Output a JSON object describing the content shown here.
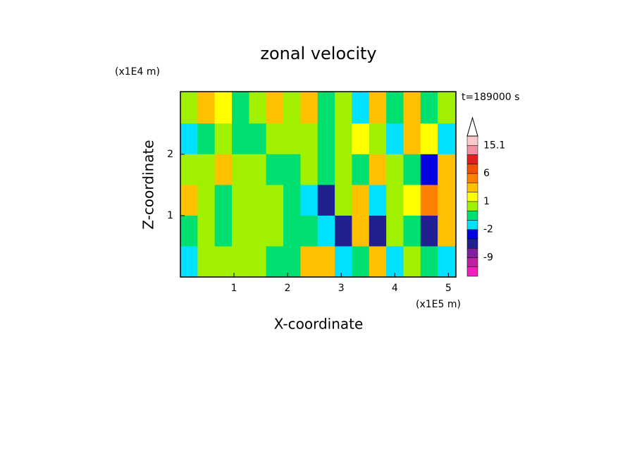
{
  "chart_data": {
    "type": "contour",
    "title": "zonal velocity",
    "x_label": "X-coordinate",
    "y_label": "Z-coordinate",
    "x_unit": "(x1E5 m)",
    "y_unit": "(x1E4 m)",
    "annotation": "t=189000 s",
    "xlim": [
      0,
      5.14
    ],
    "ylim": [
      0,
      3.02
    ],
    "xticks": [
      1,
      2,
      3,
      4,
      5
    ],
    "yticks": [
      1,
      2
    ],
    "x": [
      0.16,
      0.48,
      0.8,
      1.12,
      1.44,
      1.76,
      2.08,
      2.4,
      2.72,
      3.04,
      3.36,
      3.68,
      4.0,
      4.32,
      4.64,
      4.96
    ],
    "y": [
      2.75,
      2.25,
      1.75,
      1.25,
      0.75,
      0.25
    ],
    "z": [
      [
        0.5,
        2,
        1,
        -0.5,
        0.5,
        2,
        0.5,
        2,
        -0.5,
        0.5,
        -1.5,
        3,
        -0.5,
        2,
        -0.5,
        0.5
      ],
      [
        -1.5,
        -0.5,
        0.5,
        -0.5,
        -0.5,
        0.5,
        0.5,
        0.5,
        -0.5,
        0.5,
        1.5,
        0.5,
        -1.5,
        2,
        1.5,
        -1.5
      ],
      [
        0.5,
        0.5,
        2,
        0.5,
        0.5,
        -0.5,
        -0.5,
        0.5,
        -0.5,
        0.5,
        -0.5,
        2,
        0.5,
        -0.5,
        -3,
        2
      ],
      [
        3,
        0.5,
        -0.5,
        0.5,
        0.5,
        0.5,
        -0.5,
        -1.5,
        -5,
        0.5,
        3,
        -1.5,
        0.5,
        1.5,
        5,
        3
      ],
      [
        -0.5,
        0.5,
        -0.5,
        0.5,
        0.5,
        0.5,
        -0.5,
        -0.5,
        -1.5,
        -5,
        3,
        -5,
        0.5,
        -0.5,
        -5,
        2
      ],
      [
        -1.5,
        0.5,
        0.5,
        0.5,
        0.5,
        -0.5,
        -0.5,
        2,
        3,
        -1.5,
        -0.5,
        2,
        -1.5,
        0.5,
        -0.5,
        -1.5
      ]
    ],
    "levels": [
      -12,
      -9,
      -6,
      -4,
      -2,
      -1,
      0,
      1,
      2,
      4,
      6,
      9,
      12,
      15.1
    ],
    "colors": [
      "#f020c0",
      "#c020a0",
      "#8020a0",
      "#202090",
      "#0000e0",
      "#00e0ff",
      "#00e070",
      "#a0f000",
      "#ffff00",
      "#ffc000",
      "#ff8000",
      "#f05000",
      "#e02020",
      "#f090a0",
      "#ffc8c8"
    ],
    "colorbar_ticks": [
      15.1,
      6,
      1,
      -2,
      -9
    ]
  }
}
